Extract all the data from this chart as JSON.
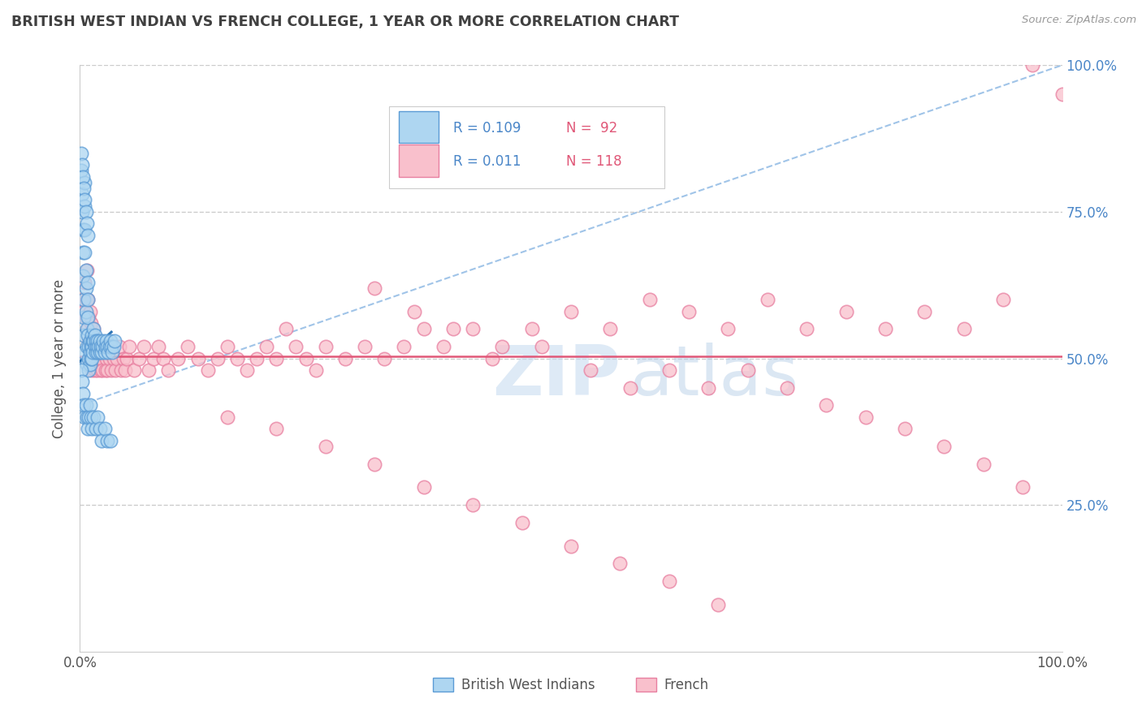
{
  "title": "BRITISH WEST INDIAN VS FRENCH COLLEGE, 1 YEAR OR MORE CORRELATION CHART",
  "source_text": "Source: ZipAtlas.com",
  "ylabel": "College, 1 year or more",
  "xlim": [
    0.0,
    1.0
  ],
  "ylim": [
    0.0,
    1.0
  ],
  "color_bwi_face": "#aed6f1",
  "color_bwi_edge": "#5b9bd5",
  "color_french_face": "#f9c0cc",
  "color_french_edge": "#e87fa0",
  "color_bwi_solid_line": "#2e75b6",
  "color_french_line": "#e05878",
  "color_bwi_dashed": "#a0c4e8",
  "background_color": "#ffffff",
  "grid_color": "#cccccc",
  "title_color": "#404040",
  "right_tick_color": "#4a86c8",
  "watermark_text": "ZIPatlas",
  "watermark_color": "#ddeeff",
  "legend_r1": "R = 0.109",
  "legend_n1": "N =  92",
  "legend_r2": "R = 0.011",
  "legend_n2": "N = 118",
  "legend_color_r": "#4a86c8",
  "legend_color_n": "#e05878",
  "bottom_legend_label1": "British West Indians",
  "bottom_legend_label2": "French",
  "bwi_x": [
    0.001,
    0.002,
    0.002,
    0.003,
    0.003,
    0.003,
    0.004,
    0.004,
    0.004,
    0.004,
    0.005,
    0.005,
    0.005,
    0.005,
    0.006,
    0.006,
    0.006,
    0.007,
    0.007,
    0.007,
    0.008,
    0.008,
    0.008,
    0.008,
    0.009,
    0.009,
    0.009,
    0.01,
    0.01,
    0.01,
    0.011,
    0.011,
    0.012,
    0.012,
    0.012,
    0.013,
    0.013,
    0.014,
    0.014,
    0.015,
    0.015,
    0.016,
    0.016,
    0.017,
    0.018,
    0.018,
    0.019,
    0.02,
    0.02,
    0.021,
    0.022,
    0.023,
    0.024,
    0.025,
    0.026,
    0.027,
    0.028,
    0.029,
    0.03,
    0.031,
    0.032,
    0.033,
    0.034,
    0.035,
    0.001,
    0.002,
    0.003,
    0.004,
    0.005,
    0.006,
    0.007,
    0.008,
    0.009,
    0.01,
    0.011,
    0.012,
    0.014,
    0.016,
    0.018,
    0.02,
    0.022,
    0.025,
    0.028,
    0.031,
    0.001,
    0.002,
    0.003,
    0.004,
    0.005,
    0.006,
    0.007,
    0.008
  ],
  "bwi_y": [
    0.82,
    0.78,
    0.75,
    0.72,
    0.68,
    0.64,
    0.6,
    0.57,
    0.54,
    0.51,
    0.8,
    0.76,
    0.72,
    0.68,
    0.65,
    0.62,
    0.58,
    0.55,
    0.52,
    0.49,
    0.63,
    0.6,
    0.57,
    0.54,
    0.52,
    0.5,
    0.48,
    0.53,
    0.51,
    0.49,
    0.52,
    0.5,
    0.54,
    0.52,
    0.5,
    0.53,
    0.51,
    0.55,
    0.53,
    0.54,
    0.52,
    0.53,
    0.51,
    0.52,
    0.53,
    0.51,
    0.52,
    0.53,
    0.51,
    0.52,
    0.51,
    0.52,
    0.53,
    0.51,
    0.52,
    0.53,
    0.52,
    0.51,
    0.52,
    0.53,
    0.52,
    0.51,
    0.52,
    0.53,
    0.48,
    0.46,
    0.44,
    0.42,
    0.4,
    0.42,
    0.4,
    0.38,
    0.4,
    0.42,
    0.4,
    0.38,
    0.4,
    0.38,
    0.4,
    0.38,
    0.36,
    0.38,
    0.36,
    0.36,
    0.85,
    0.83,
    0.81,
    0.79,
    0.77,
    0.75,
    0.73,
    0.71
  ],
  "french_x": [
    0.003,
    0.004,
    0.005,
    0.006,
    0.007,
    0.007,
    0.008,
    0.008,
    0.009,
    0.009,
    0.01,
    0.01,
    0.011,
    0.011,
    0.012,
    0.012,
    0.013,
    0.014,
    0.015,
    0.015,
    0.016,
    0.017,
    0.018,
    0.019,
    0.02,
    0.021,
    0.022,
    0.023,
    0.025,
    0.026,
    0.027,
    0.028,
    0.03,
    0.032,
    0.034,
    0.036,
    0.038,
    0.04,
    0.042,
    0.044,
    0.046,
    0.048,
    0.05,
    0.055,
    0.06,
    0.065,
    0.07,
    0.075,
    0.08,
    0.085,
    0.09,
    0.1,
    0.11,
    0.12,
    0.13,
    0.14,
    0.15,
    0.16,
    0.17,
    0.18,
    0.19,
    0.2,
    0.21,
    0.22,
    0.23,
    0.24,
    0.25,
    0.27,
    0.29,
    0.31,
    0.33,
    0.35,
    0.37,
    0.4,
    0.43,
    0.46,
    0.5,
    0.54,
    0.58,
    0.62,
    0.66,
    0.7,
    0.74,
    0.78,
    0.82,
    0.86,
    0.9,
    0.94,
    0.97,
    1.0,
    0.3,
    0.34,
    0.38,
    0.42,
    0.47,
    0.52,
    0.56,
    0.6,
    0.64,
    0.68,
    0.72,
    0.76,
    0.8,
    0.84,
    0.88,
    0.92,
    0.96,
    0.15,
    0.2,
    0.25,
    0.3,
    0.35,
    0.4,
    0.45,
    0.5,
    0.55,
    0.6,
    0.65
  ],
  "french_y": [
    0.6,
    0.58,
    0.63,
    0.57,
    0.65,
    0.6,
    0.55,
    0.6,
    0.57,
    0.53,
    0.58,
    0.53,
    0.56,
    0.5,
    0.54,
    0.48,
    0.52,
    0.55,
    0.5,
    0.48,
    0.52,
    0.5,
    0.48,
    0.52,
    0.5,
    0.48,
    0.5,
    0.48,
    0.52,
    0.48,
    0.5,
    0.48,
    0.5,
    0.48,
    0.5,
    0.48,
    0.5,
    0.52,
    0.48,
    0.5,
    0.48,
    0.5,
    0.52,
    0.48,
    0.5,
    0.52,
    0.48,
    0.5,
    0.52,
    0.5,
    0.48,
    0.5,
    0.52,
    0.5,
    0.48,
    0.5,
    0.52,
    0.5,
    0.48,
    0.5,
    0.52,
    0.5,
    0.55,
    0.52,
    0.5,
    0.48,
    0.52,
    0.5,
    0.52,
    0.5,
    0.52,
    0.55,
    0.52,
    0.55,
    0.52,
    0.55,
    0.58,
    0.55,
    0.6,
    0.58,
    0.55,
    0.6,
    0.55,
    0.58,
    0.55,
    0.58,
    0.55,
    0.6,
    1.0,
    0.95,
    0.62,
    0.58,
    0.55,
    0.5,
    0.52,
    0.48,
    0.45,
    0.48,
    0.45,
    0.48,
    0.45,
    0.42,
    0.4,
    0.38,
    0.35,
    0.32,
    0.28,
    0.4,
    0.38,
    0.35,
    0.32,
    0.28,
    0.25,
    0.22,
    0.18,
    0.15,
    0.12,
    0.08
  ],
  "bwi_line_x0": 0.0,
  "bwi_line_x1": 0.032,
  "bwi_line_y0": 0.495,
  "bwi_line_y1": 0.545,
  "french_line_y": 0.503,
  "dashed_line_x0": 0.0,
  "dashed_line_x1": 1.0,
  "dashed_line_y0": 0.42,
  "dashed_line_y1": 1.0
}
